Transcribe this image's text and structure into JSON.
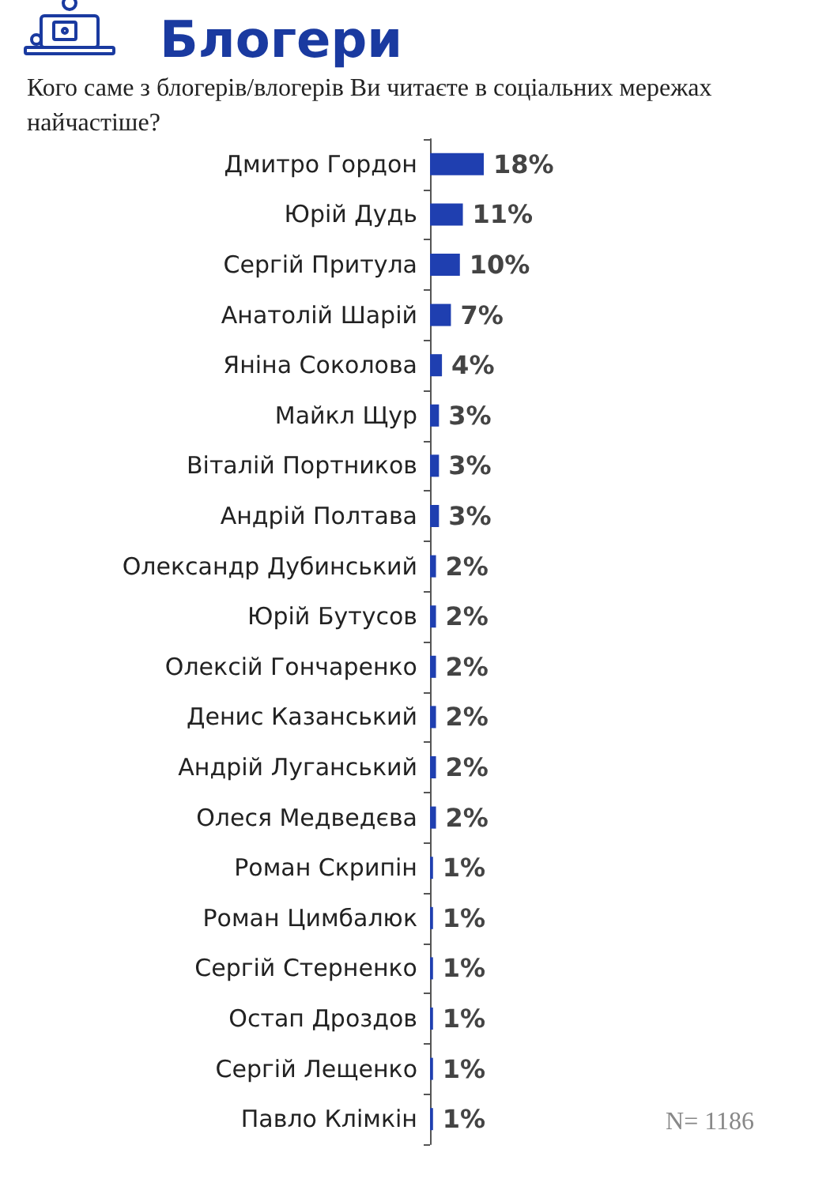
{
  "chart_data": {
    "type": "bar",
    "orientation": "horizontal",
    "title": "Блогери",
    "subtitle": "Кого саме з блогерів/влогерів Ви читаєте в соціальних мережах\nнайчастіше?",
    "categories": [
      "Дмитро Гордон",
      "Юрій Дудь",
      "Сергій Притула",
      "Анатолій Шарій",
      "Яніна Соколова",
      "Майкл Щур",
      "Віталій Портников",
      "Андрій Полтава",
      "Олександр Дубинський",
      "Юрій Бутусов",
      "Олексій Гончаренко",
      "Денис Казанський",
      "Андрій Луганський",
      "Олеся Медведєва",
      "Роман Скрипін",
      "Роман Цимбалюк",
      "Сергій Стерненко",
      "Остап Дроздов",
      "Сергій Лещенко",
      "Павло Клімкін"
    ],
    "values": [
      18,
      11,
      10,
      7,
      4,
      3,
      3,
      3,
      2,
      2,
      2,
      2,
      2,
      2,
      1,
      1,
      1,
      1,
      1,
      1
    ],
    "value_labels": [
      "18%",
      "11%",
      "10%",
      "7%",
      "4%",
      "3%",
      "3%",
      "3%",
      "2%",
      "2%",
      "2%",
      "2%",
      "2%",
      "2%",
      "1%",
      "1%",
      "1%",
      "1%",
      "1%",
      "1%"
    ],
    "color": "#1f3fb0",
    "annotations": [
      "N= 1186"
    ]
  }
}
